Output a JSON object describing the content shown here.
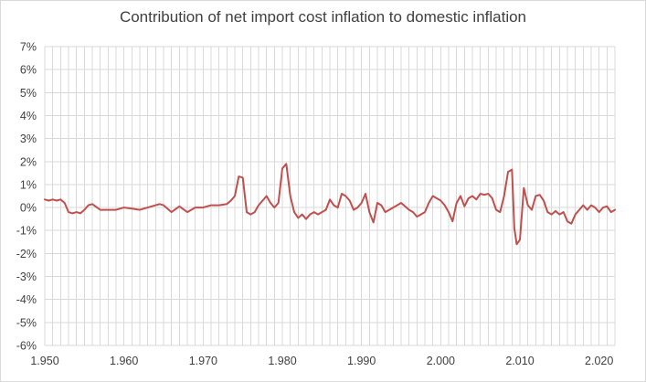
{
  "chart_data": {
    "type": "line",
    "title": "Contribution of net import cost inflation to domestic inflation",
    "xlabel": "",
    "ylabel": "",
    "xlim": [
      1950,
      2022
    ],
    "ylim": [
      -6,
      7
    ],
    "grid": true,
    "x_ticks": [
      {
        "value": 1950,
        "label": "1.950"
      },
      {
        "value": 1960,
        "label": "1.960"
      },
      {
        "value": 1970,
        "label": "1.970"
      },
      {
        "value": 1980,
        "label": "1.980"
      },
      {
        "value": 1990,
        "label": "1.990"
      },
      {
        "value": 2000,
        "label": "2.000"
      },
      {
        "value": 2010,
        "label": "2.010"
      },
      {
        "value": 2020,
        "label": "2.020"
      }
    ],
    "y_ticks": [
      {
        "value": 7,
        "label": "7%"
      },
      {
        "value": 6,
        "label": "6%"
      },
      {
        "value": 5,
        "label": "5%"
      },
      {
        "value": 4,
        "label": "4%"
      },
      {
        "value": 3,
        "label": "3%"
      },
      {
        "value": 2,
        "label": "2%"
      },
      {
        "value": 1,
        "label": "1%"
      },
      {
        "value": 0,
        "label": "0%"
      },
      {
        "value": -1,
        "label": "-1%"
      },
      {
        "value": -2,
        "label": "-2%"
      },
      {
        "value": -3,
        "label": "-3%"
      },
      {
        "value": -4,
        "label": "-4%"
      },
      {
        "value": -5,
        "label": "-5%"
      },
      {
        "value": -6,
        "label": "-6%"
      }
    ],
    "series": [
      {
        "color": "#c0504d",
        "x": [
          1950,
          1950.5,
          1951,
          1951.5,
          1952,
          1952.5,
          1953,
          1953.5,
          1954,
          1954.5,
          1955,
          1955.5,
          1956,
          1957,
          1958,
          1959,
          1960,
          1961,
          1962,
          1963,
          1964,
          1964.5,
          1965,
          1966,
          1967,
          1968,
          1969,
          1970,
          1971,
          1972,
          1973,
          1973.5,
          1974,
          1974.5,
          1975,
          1975.5,
          1976,
          1976.5,
          1977,
          1978,
          1978.5,
          1979,
          1979.5,
          1980,
          1980.5,
          1981,
          1981.5,
          1982,
          1982.5,
          1983,
          1983.5,
          1984,
          1984.5,
          1985,
          1985.5,
          1986,
          1986.5,
          1987,
          1987.5,
          1988,
          1988.5,
          1989,
          1989.5,
          1990,
          1990.5,
          1991,
          1991.5,
          1992,
          1992.5,
          1993,
          1993.5,
          1994,
          1994.5,
          1995,
          1996,
          1996.5,
          1997,
          1997.5,
          1998,
          1998.5,
          1999,
          2000,
          2000.5,
          2001,
          2001.5,
          2002,
          2002.5,
          2003,
          2003.5,
          2004,
          2004.5,
          2005,
          2005.5,
          2006,
          2006.5,
          2007,
          2007.5,
          2008,
          2008.5,
          2009,
          2009.3,
          2009.6,
          2010,
          2010.5,
          2011,
          2011.5,
          2012,
          2012.5,
          2013,
          2013.5,
          2014,
          2014.5,
          2015,
          2015.5,
          2016,
          2016.5,
          2017,
          2017.5,
          2018,
          2018.5,
          2019,
          2019.5,
          2020,
          2020.5,
          2021,
          2021.5,
          2022
        ],
        "values": [
          0.35,
          0.3,
          0.35,
          0.3,
          0.35,
          0.2,
          -0.2,
          -0.25,
          -0.2,
          -0.25,
          -0.1,
          0.1,
          0.15,
          -0.1,
          -0.1,
          -0.1,
          0.0,
          -0.05,
          -0.1,
          0.0,
          0.1,
          0.15,
          0.1,
          -0.2,
          0.05,
          -0.2,
          0.0,
          0.0,
          0.1,
          0.1,
          0.15,
          0.3,
          0.5,
          1.35,
          1.3,
          -0.2,
          -0.3,
          -0.2,
          0.1,
          0.5,
          0.2,
          0.0,
          0.2,
          1.7,
          1.9,
          0.5,
          -0.2,
          -0.45,
          -0.3,
          -0.5,
          -0.3,
          -0.2,
          -0.3,
          -0.2,
          -0.1,
          0.35,
          0.1,
          0.0,
          0.6,
          0.5,
          0.3,
          -0.1,
          0.0,
          0.2,
          0.6,
          -0.2,
          -0.65,
          0.2,
          0.1,
          -0.2,
          -0.1,
          0.0,
          0.1,
          0.2,
          -0.1,
          -0.2,
          -0.4,
          -0.3,
          -0.2,
          0.2,
          0.5,
          0.3,
          0.1,
          -0.2,
          -0.6,
          0.2,
          0.5,
          0.05,
          0.4,
          0.5,
          0.35,
          0.6,
          0.55,
          0.6,
          0.4,
          -0.1,
          -0.2,
          0.5,
          1.55,
          1.65,
          -0.9,
          -1.6,
          -1.4,
          0.85,
          0.1,
          -0.1,
          0.5,
          0.55,
          0.3,
          -0.2,
          -0.3,
          -0.15,
          -0.3,
          -0.2,
          -0.6,
          -0.7,
          -0.3,
          -0.1,
          0.1,
          -0.1,
          0.1,
          0.0,
          -0.2,
          0.0,
          0.05,
          -0.2,
          -0.1
        ]
      }
    ]
  }
}
